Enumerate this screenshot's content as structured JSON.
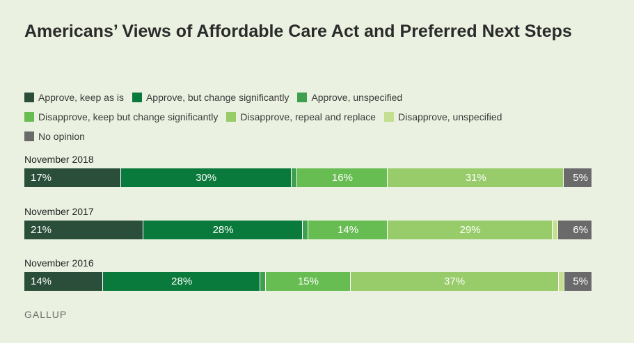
{
  "title": "Americans’ Views of Affordable Care Act and Preferred Next Steps",
  "legend": [
    {
      "label": "Approve, keep as is",
      "color": "#2a4e39"
    },
    {
      "label": "Approve, but change significantly",
      "color": "#0a7a3c"
    },
    {
      "label": "Approve, unspecified",
      "color": "#3ea04e"
    },
    {
      "label": "Disapprove, keep but change significantly",
      "color": "#67bd52"
    },
    {
      "label": "Disapprove, repeal and replace",
      "color": "#98cc6a"
    },
    {
      "label": "Disapprove, unspecified",
      "color": "#c3df8f"
    },
    {
      "label": "No opinion",
      "color": "#6a6a6a"
    }
  ],
  "source": "GALLUP",
  "chart_data": {
    "type": "bar",
    "orientation": "horizontal",
    "stacked": true,
    "xlim": [
      0,
      100
    ],
    "categories": [
      "November 2018",
      "November 2017",
      "November 2016"
    ],
    "series": [
      {
        "name": "Approve, keep as is",
        "values": [
          17,
          21,
          14
        ],
        "labels": [
          "17%",
          "21%",
          "14%"
        ]
      },
      {
        "name": "Approve, but change significantly",
        "values": [
          30,
          28,
          28
        ],
        "labels": [
          "30%",
          "28%",
          "28%"
        ]
      },
      {
        "name": "Approve, unspecified",
        "values": [
          1,
          1,
          1
        ],
        "labels": [
          "",
          "",
          ""
        ]
      },
      {
        "name": "Disapprove, keep but change significantly",
        "values": [
          16,
          14,
          15
        ],
        "labels": [
          "16%",
          "14%",
          "15%"
        ]
      },
      {
        "name": "Disapprove, repeal and replace",
        "values": [
          31,
          29,
          37
        ],
        "labels": [
          "31%",
          "29%",
          "37%"
        ]
      },
      {
        "name": "Disapprove, unspecified",
        "values": [
          0,
          1,
          1
        ],
        "labels": [
          "",
          "",
          ""
        ]
      },
      {
        "name": "No opinion",
        "values": [
          5,
          6,
          5
        ],
        "labels": [
          "5%",
          "6%",
          "5%"
        ]
      }
    ]
  }
}
